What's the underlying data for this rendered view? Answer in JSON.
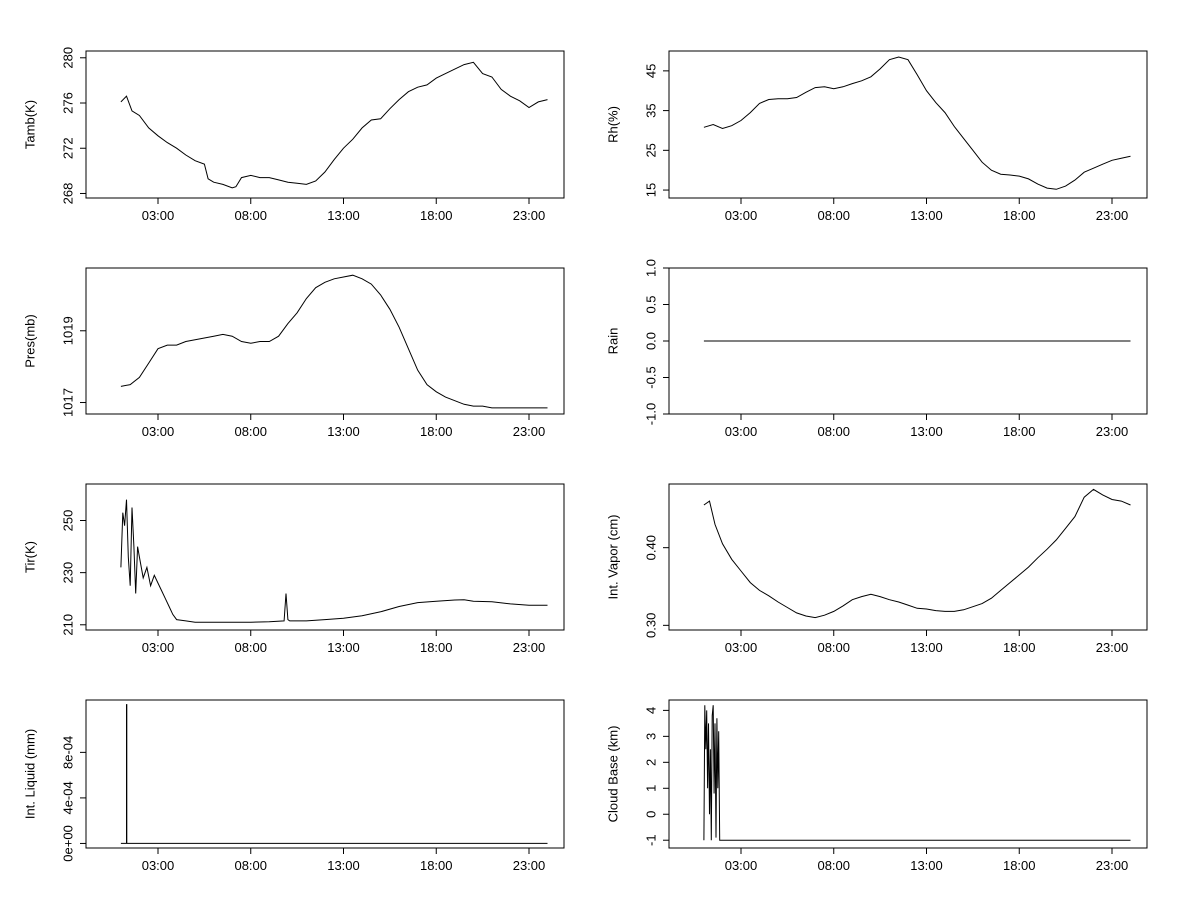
{
  "chart_data": [
    {
      "type": "line",
      "ylabel": "Tamb(K)",
      "x_ticks": [
        "03:00",
        "08:00",
        "13:00",
        "18:00",
        "23:00"
      ],
      "y_ticks": [
        "268",
        "272",
        "276",
        "280"
      ],
      "ylim": [
        267.6,
        280.6
      ],
      "xlim": [
        0.0,
        25.0
      ],
      "grid": false,
      "series": [
        {
          "x": [
            1.0,
            1.3,
            1.6,
            2.0,
            2.5,
            3.0,
            3.5,
            4.0,
            4.5,
            5.0,
            5.5,
            5.7,
            6.0,
            6.5,
            7.0,
            7.2,
            7.5,
            8.0,
            8.5,
            9.0,
            9.5,
            10.0,
            10.5,
            11.0,
            11.5,
            12.0,
            12.5,
            13.0,
            13.5,
            14.0,
            14.5,
            15.0,
            15.5,
            16.0,
            16.5,
            17.0,
            17.5,
            18.0,
            18.5,
            19.0,
            19.5,
            20.0,
            20.5,
            21.0,
            21.5,
            22.0,
            22.5,
            23.0,
            23.5,
            24.0
          ],
          "y": [
            276.1,
            276.6,
            275.3,
            274.9,
            273.8,
            273.1,
            272.5,
            272.0,
            271.4,
            270.9,
            270.6,
            269.3,
            269.0,
            268.8,
            268.5,
            268.6,
            269.4,
            269.6,
            269.4,
            269.4,
            269.2,
            269.0,
            268.9,
            268.8,
            269.1,
            269.9,
            271.0,
            272.0,
            272.8,
            273.8,
            274.5,
            274.6,
            275.5,
            276.3,
            277.0,
            277.4,
            277.6,
            278.2,
            278.6,
            279.0,
            279.4,
            279.6,
            278.6,
            278.3,
            277.2,
            276.6,
            276.2,
            275.6,
            276.1,
            276.3
          ]
        }
      ]
    },
    {
      "type": "line",
      "ylabel": "Rh(%)",
      "x_ticks": [
        "03:00",
        "08:00",
        "13:00",
        "18:00",
        "23:00"
      ],
      "y_ticks": [
        "15",
        "25",
        "35",
        "45"
      ],
      "ylim": [
        13,
        50
      ],
      "xlim": [
        0.0,
        25.0
      ],
      "grid": false,
      "series": [
        {
          "x": [
            1.0,
            1.5,
            2.0,
            2.5,
            3.0,
            3.5,
            4.0,
            4.5,
            5.0,
            5.5,
            6.0,
            6.5,
            7.0,
            7.5,
            8.0,
            8.5,
            9.0,
            9.5,
            10.0,
            10.5,
            11.0,
            11.5,
            12.0,
            12.5,
            13.0,
            13.5,
            14.0,
            14.5,
            15.0,
            15.5,
            16.0,
            16.5,
            17.0,
            17.5,
            18.0,
            18.5,
            19.0,
            19.5,
            20.0,
            20.5,
            21.0,
            21.5,
            22.0,
            22.5,
            23.0,
            23.5,
            24.0
          ],
          "y": [
            30.8,
            31.5,
            30.5,
            31.2,
            32.5,
            34.5,
            36.8,
            37.8,
            38.0,
            38.0,
            38.3,
            39.6,
            40.8,
            41.0,
            40.5,
            41.0,
            41.8,
            42.5,
            43.5,
            45.5,
            47.8,
            48.5,
            47.8,
            44.0,
            40.0,
            37.0,
            34.5,
            31.0,
            28.0,
            25.0,
            22.0,
            20.0,
            19.0,
            18.8,
            18.5,
            17.8,
            16.5,
            15.5,
            15.2,
            16.0,
            17.5,
            19.5,
            20.5,
            21.5,
            22.5,
            23.0,
            23.5
          ]
        }
      ]
    },
    {
      "type": "line",
      "ylabel": "Pres(mb)",
      "x_ticks": [
        "03:00",
        "08:00",
        "13:00",
        "18:00",
        "23:00"
      ],
      "y_ticks": [
        "1017",
        "1019"
      ],
      "ylim": [
        1016.68,
        1020.75
      ],
      "xlim": [
        0.0,
        25.0
      ],
      "grid": false,
      "series": [
        {
          "x": [
            1.0,
            1.5,
            2.0,
            2.5,
            3.0,
            3.5,
            4.0,
            4.5,
            5.0,
            5.5,
            6.0,
            6.5,
            7.0,
            7.5,
            8.0,
            8.5,
            9.0,
            9.5,
            10.0,
            10.5,
            11.0,
            11.5,
            12.0,
            12.5,
            13.0,
            13.5,
            14.0,
            14.5,
            15.0,
            15.5,
            16.0,
            16.5,
            17.0,
            17.5,
            18.0,
            18.5,
            19.0,
            19.5,
            20.0,
            20.5,
            21.0,
            21.5,
            22.0,
            22.5,
            23.0,
            23.5,
            24.0
          ],
          "y": [
            1017.45,
            1017.5,
            1017.7,
            1018.1,
            1018.5,
            1018.6,
            1018.6,
            1018.7,
            1018.75,
            1018.8,
            1018.85,
            1018.9,
            1018.85,
            1018.7,
            1018.65,
            1018.7,
            1018.7,
            1018.85,
            1019.2,
            1019.5,
            1019.9,
            1020.2,
            1020.35,
            1020.45,
            1020.5,
            1020.55,
            1020.45,
            1020.3,
            1020.0,
            1019.6,
            1019.1,
            1018.5,
            1017.9,
            1017.5,
            1017.3,
            1017.15,
            1017.05,
            1016.95,
            1016.9,
            1016.9,
            1016.85,
            1016.85,
            1016.85,
            1016.85,
            1016.85,
            1016.85,
            1016.85
          ]
        }
      ]
    },
    {
      "type": "line",
      "ylabel": "Rain",
      "x_ticks": [
        "03:00",
        "08:00",
        "13:00",
        "18:00",
        "23:00"
      ],
      "y_ticks": [
        "-1.0",
        "-0.5",
        "0.0",
        "0.5",
        "1.0"
      ],
      "ylim": [
        -1.0,
        1.0
      ],
      "xlim": [
        0.0,
        25.0
      ],
      "grid": false,
      "series": [
        {
          "x": [
            1.0,
            24.0
          ],
          "y": [
            0.0,
            0.0
          ]
        }
      ]
    },
    {
      "type": "line",
      "ylabel": "Tir(K)",
      "x_ticks": [
        "03:00",
        "08:00",
        "13:00",
        "18:00",
        "23:00"
      ],
      "y_ticks": [
        "210",
        "230",
        "250"
      ],
      "ylim": [
        208,
        264
      ],
      "xlim": [
        0.0,
        25.0
      ],
      "grid": false,
      "series": [
        {
          "x": [
            1.0,
            1.1,
            1.2,
            1.3,
            1.4,
            1.5,
            1.6,
            1.7,
            1.8,
            1.9,
            2.0,
            2.2,
            2.4,
            2.6,
            2.8,
            3.0,
            3.2,
            3.4,
            3.6,
            3.8,
            4.0,
            4.5,
            5.0,
            6.0,
            7.0,
            8.0,
            9.0,
            9.8,
            9.9,
            10.0,
            10.1,
            11.0,
            12.0,
            13.0,
            14.0,
            15.0,
            16.0,
            17.0,
            18.0,
            19.0,
            19.5,
            20.0,
            21.0,
            22.0,
            23.0,
            24.0
          ],
          "y": [
            232,
            253,
            248,
            258,
            236,
            225,
            255,
            240,
            222,
            240,
            236,
            228,
            232,
            225,
            229,
            226,
            223,
            220,
            217,
            214,
            212,
            211.5,
            211,
            211,
            211,
            211,
            211.2,
            211.5,
            222,
            212,
            211.5,
            211.5,
            212,
            212.5,
            213.5,
            215,
            217,
            218.5,
            219,
            219.5,
            219.6,
            219,
            218.8,
            218,
            217.5,
            217.5
          ]
        }
      ]
    },
    {
      "type": "line",
      "ylabel": "Int. Vapor (cm)",
      "x_ticks": [
        "03:00",
        "08:00",
        "13:00",
        "18:00",
        "23:00"
      ],
      "y_ticks": [
        "0.30",
        "0.40"
      ],
      "ylim": [
        0.294,
        0.482
      ],
      "xlim": [
        0.0,
        25.0
      ],
      "grid": false,
      "series": [
        {
          "x": [
            1.0,
            1.3,
            1.6,
            2.0,
            2.5,
            3.0,
            3.5,
            4.0,
            4.5,
            5.0,
            5.5,
            6.0,
            6.5,
            7.0,
            7.5,
            8.0,
            8.5,
            9.0,
            9.5,
            10.0,
            10.5,
            11.0,
            11.5,
            12.0,
            12.5,
            13.0,
            13.5,
            14.0,
            14.5,
            15.0,
            15.5,
            16.0,
            16.5,
            17.0,
            17.5,
            18.0,
            18.5,
            19.0,
            19.5,
            20.0,
            20.5,
            21.0,
            21.5,
            22.0,
            22.5,
            23.0,
            23.5,
            24.0
          ],
          "y": [
            0.455,
            0.46,
            0.43,
            0.405,
            0.385,
            0.37,
            0.355,
            0.345,
            0.338,
            0.33,
            0.323,
            0.316,
            0.312,
            0.31,
            0.313,
            0.318,
            0.325,
            0.333,
            0.337,
            0.34,
            0.337,
            0.333,
            0.33,
            0.326,
            0.322,
            0.321,
            0.319,
            0.318,
            0.318,
            0.32,
            0.324,
            0.328,
            0.335,
            0.345,
            0.355,
            0.365,
            0.375,
            0.387,
            0.398,
            0.41,
            0.425,
            0.44,
            0.465,
            0.475,
            0.468,
            0.462,
            0.46,
            0.455
          ]
        }
      ]
    },
    {
      "type": "line",
      "ylabel": "Int. Liquid (mm)",
      "x_ticks": [
        "03:00",
        "08:00",
        "13:00",
        "18:00",
        "23:00"
      ],
      "y_ticks": [
        "0e+00",
        "4e-04",
        "8e-04"
      ],
      "ylim": [
        -4e-05,
        0.00126
      ],
      "xlim": [
        0.0,
        25.0
      ],
      "grid": false,
      "series": [
        {
          "x": [
            1.0,
            1.3,
            1.3,
            1.32,
            1.32,
            24.0
          ],
          "y": [
            0.0,
            0.0,
            0.00122,
            0.00122,
            0.0,
            0.0
          ]
        }
      ]
    },
    {
      "type": "line",
      "ylabel": "Cloud Base (km)",
      "x_ticks": [
        "03:00",
        "08:00",
        "13:00",
        "18:00",
        "23:00"
      ],
      "y_ticks": [
        "-1",
        "0",
        "1",
        "2",
        "3",
        "4"
      ],
      "ylim": [
        -1.3,
        4.4
      ],
      "xlim": [
        0.0,
        25.0
      ],
      "grid": false,
      "series": [
        {
          "x": [
            1.0,
            1.05,
            1.1,
            1.15,
            1.2,
            1.25,
            1.3,
            1.35,
            1.4,
            1.45,
            1.5,
            1.55,
            1.6,
            1.65,
            1.7,
            1.75,
            1.8,
            1.85,
            1.9,
            24.0
          ],
          "y": [
            -1.0,
            4.2,
            2.5,
            4.0,
            1.0,
            3.5,
            0.0,
            2.5,
            -1.0,
            3.8,
            4.2,
            0.8,
            3.5,
            -0.9,
            3.7,
            1.0,
            3.2,
            -1.0,
            -1.0,
            -1.0
          ]
        }
      ]
    }
  ]
}
